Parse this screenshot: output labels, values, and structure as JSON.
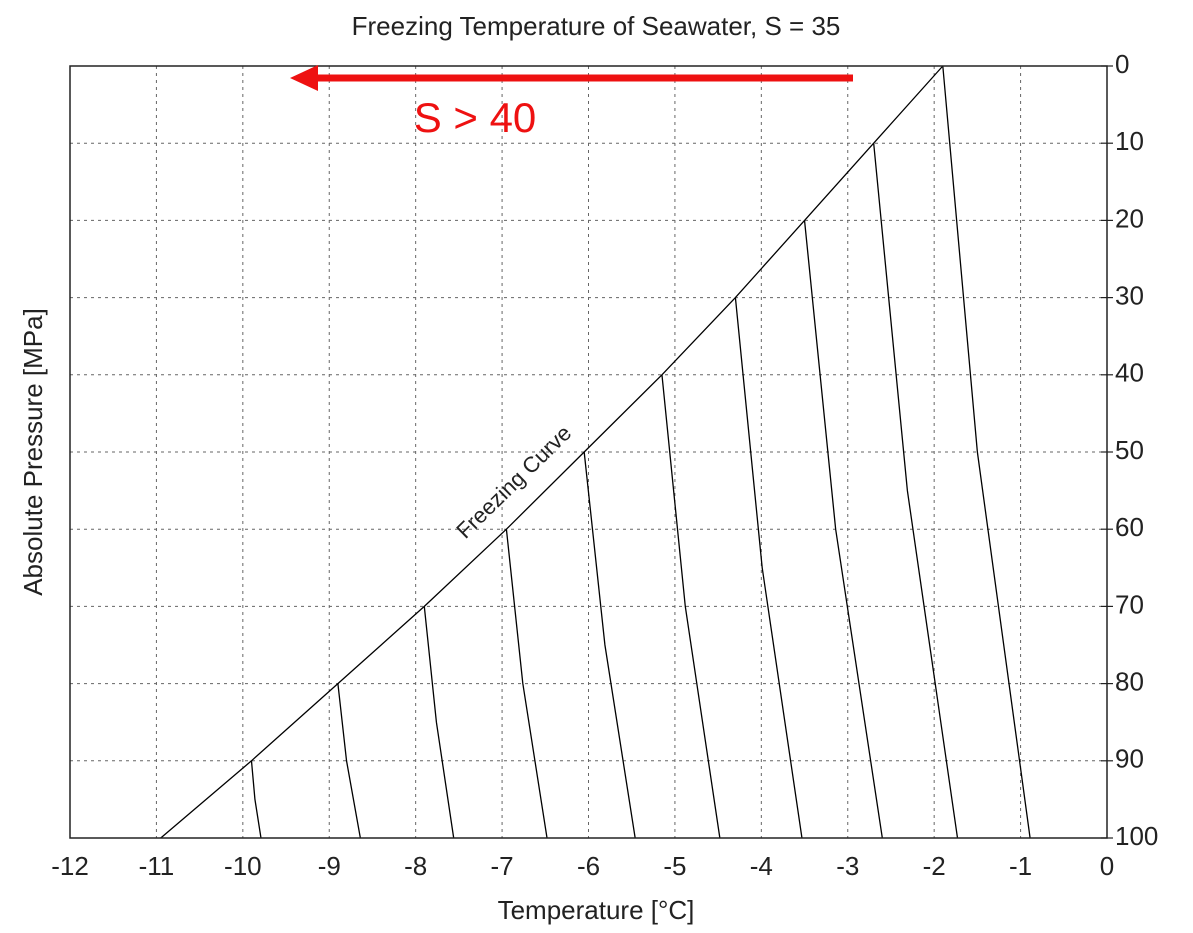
{
  "chart_data": {
    "type": "line",
    "title": "Freezing Temperature of Seawater, S = 35",
    "x_label": "Temperature [°C]",
    "y_label": "Absolute Pressure [MPa]",
    "xlim": [
      -12,
      0
    ],
    "xticks": [
      -12,
      -11,
      -10,
      -9,
      -8,
      -7,
      -6,
      -5,
      -4,
      -3,
      -2,
      -1,
      0
    ],
    "ylim": [
      100,
      0
    ],
    "yticks": [
      0,
      10,
      20,
      30,
      40,
      50,
      60,
      70,
      80,
      90,
      100
    ],
    "y_axis_side": "right",
    "grid": true,
    "annotations": [
      {
        "text": "Freezing Curve"
      },
      {
        "text": "S > 40"
      }
    ],
    "series": [
      {
        "color": "#000000",
        "x": [
          -1.9,
          -2.7,
          -3.5,
          -4.3,
          -5.15,
          -6.05,
          -6.95,
          -7.9,
          -8.9,
          -9.9,
          -10.95
        ],
        "y": [
          0,
          10,
          20,
          30,
          40,
          50,
          60,
          70,
          80,
          90,
          100
        ]
      },
      {
        "color": "#000000",
        "x": [
          -1.9,
          -1.5,
          -0.89
        ],
        "y": [
          0,
          50,
          100
        ]
      },
      {
        "color": "#000000",
        "x": [
          -2.7,
          -2.31,
          -1.73
        ],
        "y": [
          10,
          55,
          100
        ]
      },
      {
        "color": "#000000",
        "x": [
          -3.5,
          -3.14,
          -2.6
        ],
        "y": [
          20,
          60,
          100
        ]
      },
      {
        "color": "#000000",
        "x": [
          -4.3,
          -3.99,
          -3.53
        ],
        "y": [
          30,
          65,
          100
        ]
      },
      {
        "color": "#000000",
        "x": [
          -5.15,
          -4.88,
          -4.48
        ],
        "y": [
          40,
          70,
          100
        ]
      },
      {
        "color": "#000000",
        "x": [
          -6.05,
          -5.81,
          -5.46
        ],
        "y": [
          50,
          75,
          100
        ]
      },
      {
        "color": "#000000",
        "x": [
          -6.95,
          -6.76,
          -6.48
        ],
        "y": [
          60,
          80,
          100
        ]
      },
      {
        "color": "#000000",
        "x": [
          -7.9,
          -7.76,
          -7.56
        ],
        "y": [
          70,
          85,
          100
        ]
      },
      {
        "color": "#000000",
        "x": [
          -8.9,
          -8.8,
          -8.64
        ],
        "y": [
          80,
          90,
          100
        ]
      },
      {
        "color": "#000000",
        "x": [
          -9.9,
          -9.86,
          -9.79
        ],
        "y": [
          90,
          95,
          100
        ]
      }
    ]
  }
}
